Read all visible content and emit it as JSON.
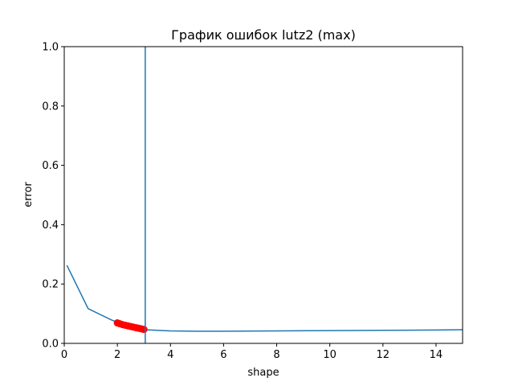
{
  "chart_data": {
    "type": "line",
    "title": "График ошибок lutz2 (max)",
    "xlabel": "shape",
    "ylabel": "error",
    "xlim": [
      0,
      15
    ],
    "ylim": [
      0,
      1.0
    ],
    "x_ticks": [
      0,
      2,
      4,
      6,
      8,
      10,
      12,
      14
    ],
    "x_tick_labels": [
      "0",
      "2",
      "4",
      "6",
      "8",
      "10",
      "12",
      "14"
    ],
    "y_ticks": [
      0,
      0.2,
      0.4,
      0.6,
      0.8,
      1.0
    ],
    "y_tick_labels": [
      "0.0",
      "0.2",
      "0.4",
      "0.6",
      "0.8",
      "1.0"
    ],
    "grid": false,
    "series": [
      {
        "kind": "line",
        "color": "#1f77b4",
        "x": [
          0.1,
          0.9,
          1.8,
          2.4,
          3.0,
          4.0,
          5.0,
          6.0,
          8.0,
          10.0,
          12.0,
          14.0,
          15.0
        ],
        "y": [
          0.263,
          0.117,
          0.078,
          0.058,
          0.046,
          0.042,
          0.041,
          0.041,
          0.042,
          0.043,
          0.044,
          0.045,
          0.046
        ]
      },
      {
        "kind": "scatter",
        "color": "#ff0000",
        "x": [
          2.0,
          2.1,
          2.2,
          2.3,
          2.4,
          2.5,
          2.6,
          2.7,
          2.8,
          2.9,
          3.0
        ],
        "y": [
          0.069,
          0.066,
          0.063,
          0.061,
          0.059,
          0.057,
          0.055,
          0.053,
          0.051,
          0.049,
          0.047
        ]
      }
    ],
    "vlines": [
      {
        "x": 3.05,
        "color": "#1f77b4"
      }
    ]
  }
}
